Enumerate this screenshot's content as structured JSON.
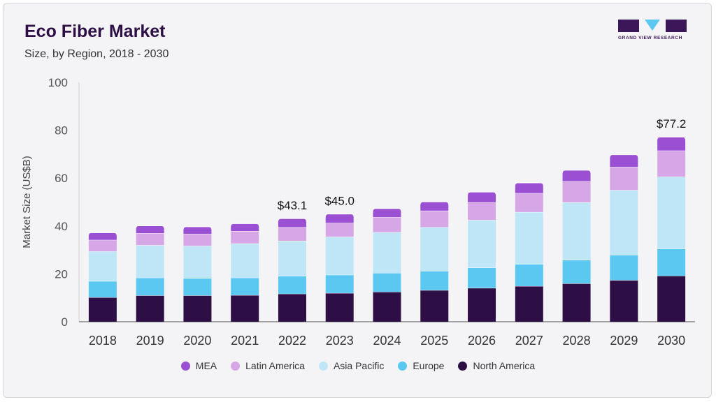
{
  "title": "Eco Fiber Market",
  "subtitle": "Size, by Region, 2018 - 2030",
  "brand": "GRAND VIEW RESEARCH",
  "chart_data": {
    "type": "bar",
    "stacked": true,
    "categories": [
      "2018",
      "2019",
      "2020",
      "2021",
      "2022",
      "2023",
      "2024",
      "2025",
      "2026",
      "2027",
      "2028",
      "2029",
      "2030"
    ],
    "series": [
      {
        "name": "North America",
        "color": "#2e0f45",
        "values": [
          10.2,
          11.0,
          11.0,
          11.1,
          11.7,
          12.0,
          12.5,
          13.2,
          14.1,
          14.9,
          16.0,
          17.4,
          19.2
        ]
      },
      {
        "name": "Europe",
        "color": "#5bc8f2",
        "values": [
          6.8,
          7.4,
          7.2,
          7.3,
          7.4,
          7.6,
          7.9,
          8.0,
          8.5,
          9.2,
          9.8,
          10.5,
          11.3
        ]
      },
      {
        "name": "Asia Pacific",
        "color": "#bfe6f7",
        "values": [
          12.4,
          13.6,
          13.5,
          14.3,
          14.7,
          15.9,
          17.0,
          18.3,
          19.9,
          21.7,
          24.1,
          27.1,
          30.1
        ]
      },
      {
        "name": "Latin America",
        "color": "#d6a6e6",
        "values": [
          4.8,
          5.0,
          5.0,
          5.2,
          5.7,
          5.8,
          6.3,
          6.9,
          7.4,
          7.9,
          8.8,
          9.7,
          10.9
        ]
      },
      {
        "name": "MEA",
        "color": "#9b4fd3",
        "values": [
          3.0,
          3.1,
          3.0,
          3.1,
          3.6,
          3.7,
          3.6,
          3.7,
          4.3,
          4.3,
          4.6,
          5.1,
          5.7
        ]
      }
    ],
    "legend_order": [
      "MEA",
      "Latin America",
      "Asia Pacific",
      "Europe",
      "North America"
    ],
    "annotations": [
      {
        "category": "2022",
        "text": "$43.1"
      },
      {
        "category": "2023",
        "text": "$45.0"
      },
      {
        "category": "2030",
        "text": "$77.2"
      }
    ],
    "ylabel": "Market Size (US$B)",
    "xlabel": "",
    "ylim": [
      0,
      100
    ],
    "yticks": [
      0,
      20,
      40,
      60,
      80,
      100
    ],
    "grid": false,
    "legend_position": "bottom"
  }
}
